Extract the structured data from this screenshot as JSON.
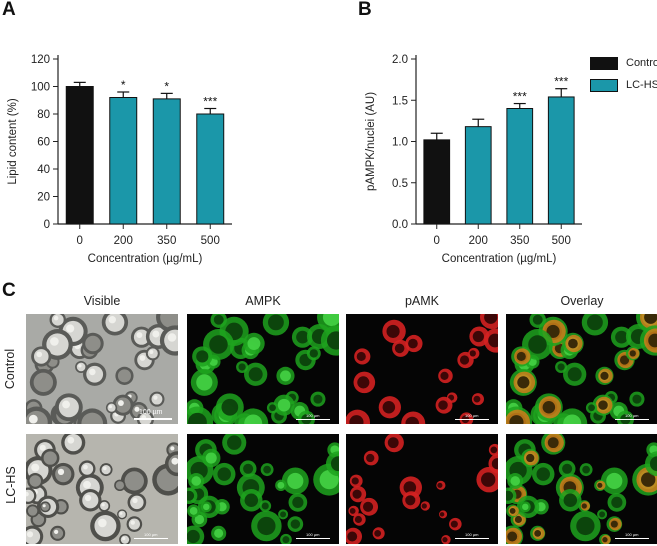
{
  "panels": {
    "a": "A",
    "b": "B",
    "c": "C"
  },
  "colors": {
    "control": "#111111",
    "treatment": "#1b97a9"
  },
  "legend": {
    "control": "Control",
    "treatment": "LC-HS"
  },
  "chart_data": [
    {
      "type": "bar",
      "panel": "A",
      "categories": [
        "0",
        "200",
        "350",
        "500"
      ],
      "values": [
        100,
        92,
        91,
        80
      ],
      "errors": [
        3,
        4,
        4,
        4
      ],
      "significance": [
        "",
        "*",
        "*",
        "***"
      ],
      "bar_series": [
        "Control",
        "LC-HS",
        "LC-HS",
        "LC-HS"
      ],
      "xlabel": "Concentration (µg/mL)",
      "ylabel": "Lipid content (%)",
      "ylim": [
        0,
        120
      ],
      "yticks": [
        "0",
        "20",
        "40",
        "60",
        "80",
        "100",
        "120"
      ],
      "yticks_values": [
        0,
        20,
        40,
        60,
        80,
        100,
        120
      ],
      "grid": false
    },
    {
      "type": "bar",
      "panel": "B",
      "categories": [
        "0",
        "200",
        "350",
        "500"
      ],
      "values": [
        1.02,
        1.18,
        1.4,
        1.54
      ],
      "errors": [
        0.08,
        0.09,
        0.06,
        0.1
      ],
      "significance": [
        "",
        "",
        "***",
        "***"
      ],
      "bar_series": [
        "Control",
        "LC-HS",
        "LC-HS",
        "LC-HS"
      ],
      "xlabel": "Concentration (µg/mL)",
      "ylabel": "pAMPK/nuclei (AU)",
      "ylim": [
        0,
        2.0
      ],
      "yticks": [
        "0.0",
        "0.5",
        "1.0",
        "1.5",
        "2.0"
      ],
      "yticks_values": [
        0,
        0.5,
        1.0,
        1.5,
        2.0
      ],
      "grid": false,
      "legend_position": "right"
    }
  ],
  "micrographs": {
    "columns": [
      "Visible",
      "AMPK",
      "pAMK",
      "Overlay"
    ],
    "rows": [
      "Control",
      "LC-HS"
    ],
    "scalebar_visible": "100 µm",
    "scalebar_fluor": "100 µm"
  }
}
